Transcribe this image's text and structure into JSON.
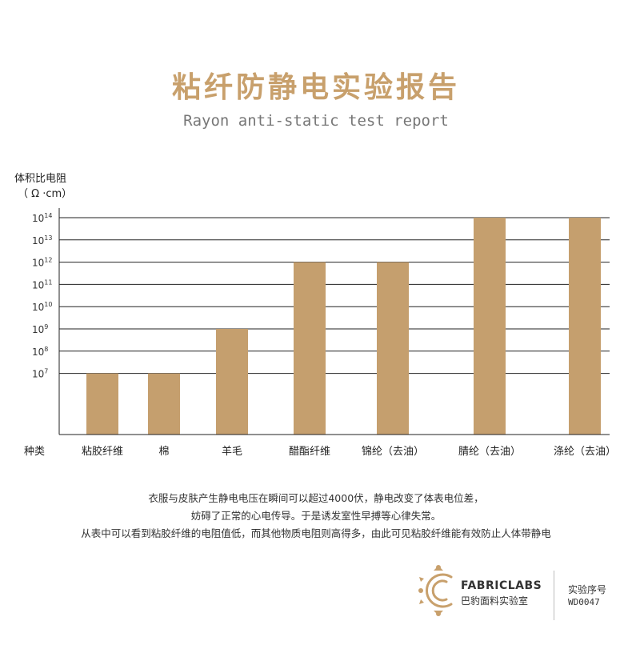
{
  "header": {
    "title": "粘纤防静电实验报告",
    "subtitle": "Rayon anti-static test report"
  },
  "chart_data": {
    "type": "bar",
    "title": "",
    "ylabel": "体积比电阻",
    "ylabel_unit": "（ Ω ·cm）",
    "xlabel": "种类",
    "scale": "log10",
    "ylim_exponent": [
      6,
      14
    ],
    "tick_base": "10",
    "tick_exponents": [
      "14",
      "13",
      "12",
      "11",
      "10",
      "9",
      "8",
      "7"
    ],
    "categories": [
      "粘胶纤维",
      "棉",
      "羊毛",
      "醋酯纤维",
      "锦纶（去油）",
      "腈纶（去油）",
      "涤纶（去油）"
    ],
    "values": [
      10000000,
      10000000,
      1000000000,
      1000000000000,
      1000000000000,
      100000000000000,
      100000000000000
    ],
    "exponents": [
      7,
      7,
      9,
      12,
      12,
      14,
      14
    ],
    "highlight_category": "粘胶纤维",
    "bar_color": "#c59f6e",
    "highlight_color": "#e0301e",
    "grid": true
  },
  "description": {
    "line1": "衣服与皮肤产生静电电压在瞬间可以超过4000伏，静电改变了体表电位差，",
    "line2": "妨碍了正常的心电传导。于是诱发室性早搏等心律失常。",
    "line3": "从表中可以看到粘胶纤维的电阻值低，而其他物质电阻则高得多，由此可见粘胶纤维能有效防止人体带静电"
  },
  "footer": {
    "brand": "FABRICLABS",
    "brand_cn": "巴豹面料实验室",
    "logo_icon": "ornate-c-logo-icon",
    "exp_label": "实验序号",
    "exp_id": "WD0047",
    "accent": "#c8a06c"
  }
}
